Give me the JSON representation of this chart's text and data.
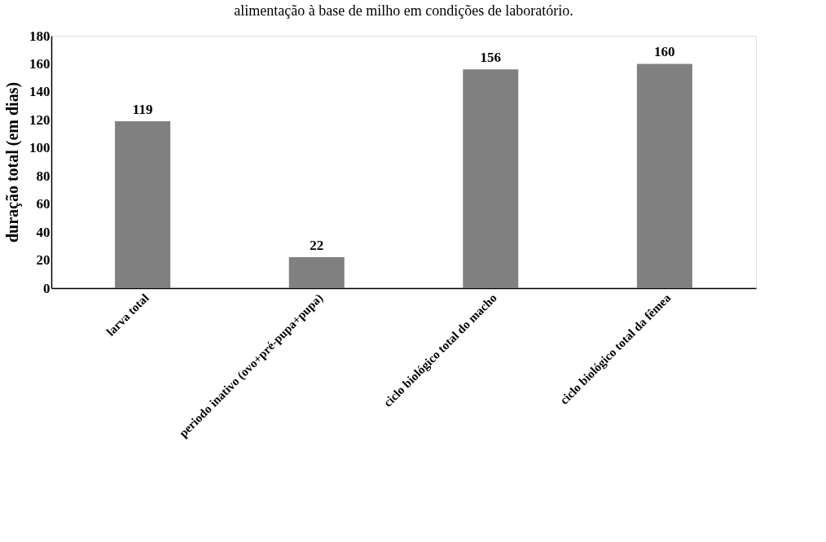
{
  "chart_data": {
    "type": "bar",
    "title": "alimentação à base de milho em condições de laboratório.",
    "ylabel": "duração total (em dias)",
    "categories": [
      "larva total",
      "periodo inativo (ovo+pré-pupa+pupa)",
      "ciclo biológico total do  macho",
      "ciclo biológico total da fêmea"
    ],
    "values": [
      119,
      22,
      156,
      160
    ],
    "color": "#808080",
    "ylim": [
      0,
      180
    ],
    "yticks": [
      0,
      20,
      40,
      60,
      80,
      100,
      120,
      140,
      160,
      180
    ],
    "data_labels": true,
    "grid": false
  }
}
